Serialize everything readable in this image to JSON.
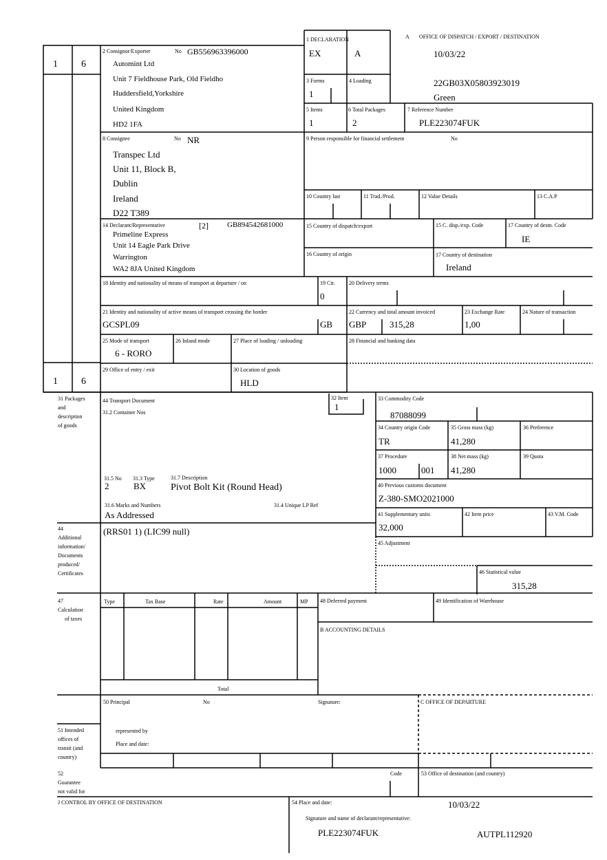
{
  "header": {
    "box_a_label": "A",
    "box_a_title": "OFFICE OF DISPATCH / EXPORT / DESTINATION",
    "date": "10/03/22",
    "mrn": "22GB03X05803923019",
    "route": "Green"
  },
  "side": {
    "top_left": "1",
    "top_right": "6",
    "bottom_left": "1",
    "bottom_right": "6"
  },
  "box1": {
    "label": "1 DECLARATION",
    "v1": "EX",
    "v2": "A"
  },
  "box2": {
    "label": "2 Consignor/Exporter",
    "no_label": "No",
    "no": "GB556963396000",
    "lines": [
      "Automint Ltd",
      "Unit 7 Fieldhouse Park, Old Fieldho",
      "Huddersfield,Yorkshire",
      "United Kingdom",
      "HD2 1FA"
    ]
  },
  "box3": {
    "label": "3 Forms",
    "value": "1"
  },
  "box4": {
    "label": "4 Loading"
  },
  "box5": {
    "label": "5 Items",
    "value": "1"
  },
  "box6": {
    "label": "6 Total Packages",
    "value": "2"
  },
  "box7": {
    "label": "7 Reference Number",
    "value": "PLE223074FUK"
  },
  "box8": {
    "label": "8 Consignee",
    "no_label": "No",
    "no": "NR",
    "lines": [
      "Transpec Ltd",
      "Unit 11, Block B,",
      "Dublin",
      "Ireland",
      "D22 T389"
    ]
  },
  "box9": {
    "label": "9 Person responsible for financial settlement",
    "no_label": "No"
  },
  "box10": {
    "label": "10 Country last"
  },
  "box11": {
    "label": "11 Trad./Prod."
  },
  "box12": {
    "label": "12 Value Details"
  },
  "box13": {
    "label": "13 C.A.P"
  },
  "box14": {
    "label": "14 Declarant/Representative",
    "code": "[2]",
    "no": "GB894542681000",
    "lines": [
      "Primeline Express",
      "Unit 14 Eagle Park Drive",
      "Warrington",
      "WA2 8JA United Kingdom"
    ]
  },
  "box15": {
    "label": "15 Country of dispatch/export"
  },
  "box15a": {
    "label": "15 C. disp./exp. Code"
  },
  "box17a": {
    "label": "17 Country of destn. Code",
    "value": "IE"
  },
  "box16": {
    "label": "16 Country of origin"
  },
  "box17": {
    "label": "17 Country of destination",
    "value": "Ireland"
  },
  "box18": {
    "label": "18 Identity and nationality of means of transport at departure / on"
  },
  "box19": {
    "label": "19 Ctr.",
    "value": "0"
  },
  "box20": {
    "label": "20 Delivery terms"
  },
  "box21": {
    "label": "21 Identity and nationality of active means of transport crossing the border",
    "value": "GCSPL09",
    "nationality": "GB"
  },
  "box22": {
    "label": "22 Currency and total amount invoiced",
    "currency": "GBP",
    "amount": "315,28"
  },
  "box23": {
    "label": "23 Exchange Rate",
    "value": "1,00"
  },
  "box24": {
    "label": "24 Nature of transaction"
  },
  "box25": {
    "label": "25 Mode of transport",
    "value": "6 - RORO"
  },
  "box26": {
    "label": "26 Inland mode"
  },
  "box27": {
    "label": "27 Place of loading / unloading"
  },
  "box28": {
    "label": "28 Financial and banking data"
  },
  "box29": {
    "label": "29 Office of entry / exit"
  },
  "box30": {
    "label": "30 Location of goods",
    "value": "HLD"
  },
  "goods": {
    "side_label": [
      "31 Packages",
      "and",
      "description",
      "of goods"
    ],
    "transport_doc_label": "44 Transport Document",
    "container_label": "31.2 Container Nos",
    "no_label": "31.5 No",
    "no": "2",
    "type_label": "31.3 Type",
    "type": "BX",
    "desc_label": "31.7 Description",
    "desc": "Pivot Bolt Kit (Round Head)",
    "marks_label": "31.6 Marks and Numbers",
    "marks": "As Addressed",
    "lp_label": "31.4 Unique LP Ref",
    "item_label": "32 Item",
    "item": "1"
  },
  "box33": {
    "label": "33 Commodity Code",
    "value": "87088099"
  },
  "box34": {
    "label": "34 Country origin Code",
    "value": "TR"
  },
  "box35": {
    "label": "35 Gross mass (kg)",
    "value": "41,280"
  },
  "box36": {
    "label": "36 Preference"
  },
  "box37": {
    "label": "37 Procedure",
    "v1": "1000",
    "v2": "001"
  },
  "box38": {
    "label": "38 Net mass (kg)",
    "value": "41,280"
  },
  "box39": {
    "label": "39 Quota"
  },
  "box40": {
    "label": "40 Previous customs document",
    "value": "Z-380-SMO2021000"
  },
  "box41": {
    "label": "41 Supplementary units",
    "value": "32,000"
  },
  "box42": {
    "label": "42 Item price"
  },
  "box43": {
    "label": "43 V.M. Code"
  },
  "box44": {
    "side_label": [
      "44",
      "Additional",
      "information/",
      "Documents",
      "produced/",
      "Certificates"
    ],
    "value": "(RRS01 1) (LIC99 null)"
  },
  "box45": {
    "label": "45 Adjustment"
  },
  "box46": {
    "label": "46 Statistical value",
    "value": "315,28"
  },
  "box47": {
    "side_label": [
      "47",
      "Calculation",
      "of taxes"
    ],
    "columns": [
      "Type",
      "Tax Base",
      "Rate",
      "Amount",
      "MP"
    ],
    "total_label": "Total"
  },
  "box48": {
    "label": "48 Deferred payment"
  },
  "box49": {
    "label": "49 Identification of Warehouse"
  },
  "boxB": {
    "label": "B ACCOUNTING DETAILS"
  },
  "box50": {
    "label": "50 Principal",
    "no_label": "No",
    "signature_label": "Signature:",
    "represented_label": "represented by",
    "place_label": "Place and date:"
  },
  "box51": {
    "side_label": [
      "51 Intended",
      "offices of",
      "transit (and",
      "country)"
    ]
  },
  "boxC": {
    "label": "C OFFICE OF DEPARTURE"
  },
  "box52": {
    "side_label": [
      "52",
      "Guarantee",
      "not valid for"
    ],
    "code_label": "Code"
  },
  "box53": {
    "label": "53 Office of destination (and country)"
  },
  "boxJ": {
    "label": "J CONTROL BY OFFICE OF DESTINATION"
  },
  "box54": {
    "label": "54 Place and date:",
    "date": "10/03/22",
    "sig_label": "Signature and name of declarant/representative:",
    "declarant": "PLE223074FUK",
    "ref": "AUTPL112920"
  }
}
